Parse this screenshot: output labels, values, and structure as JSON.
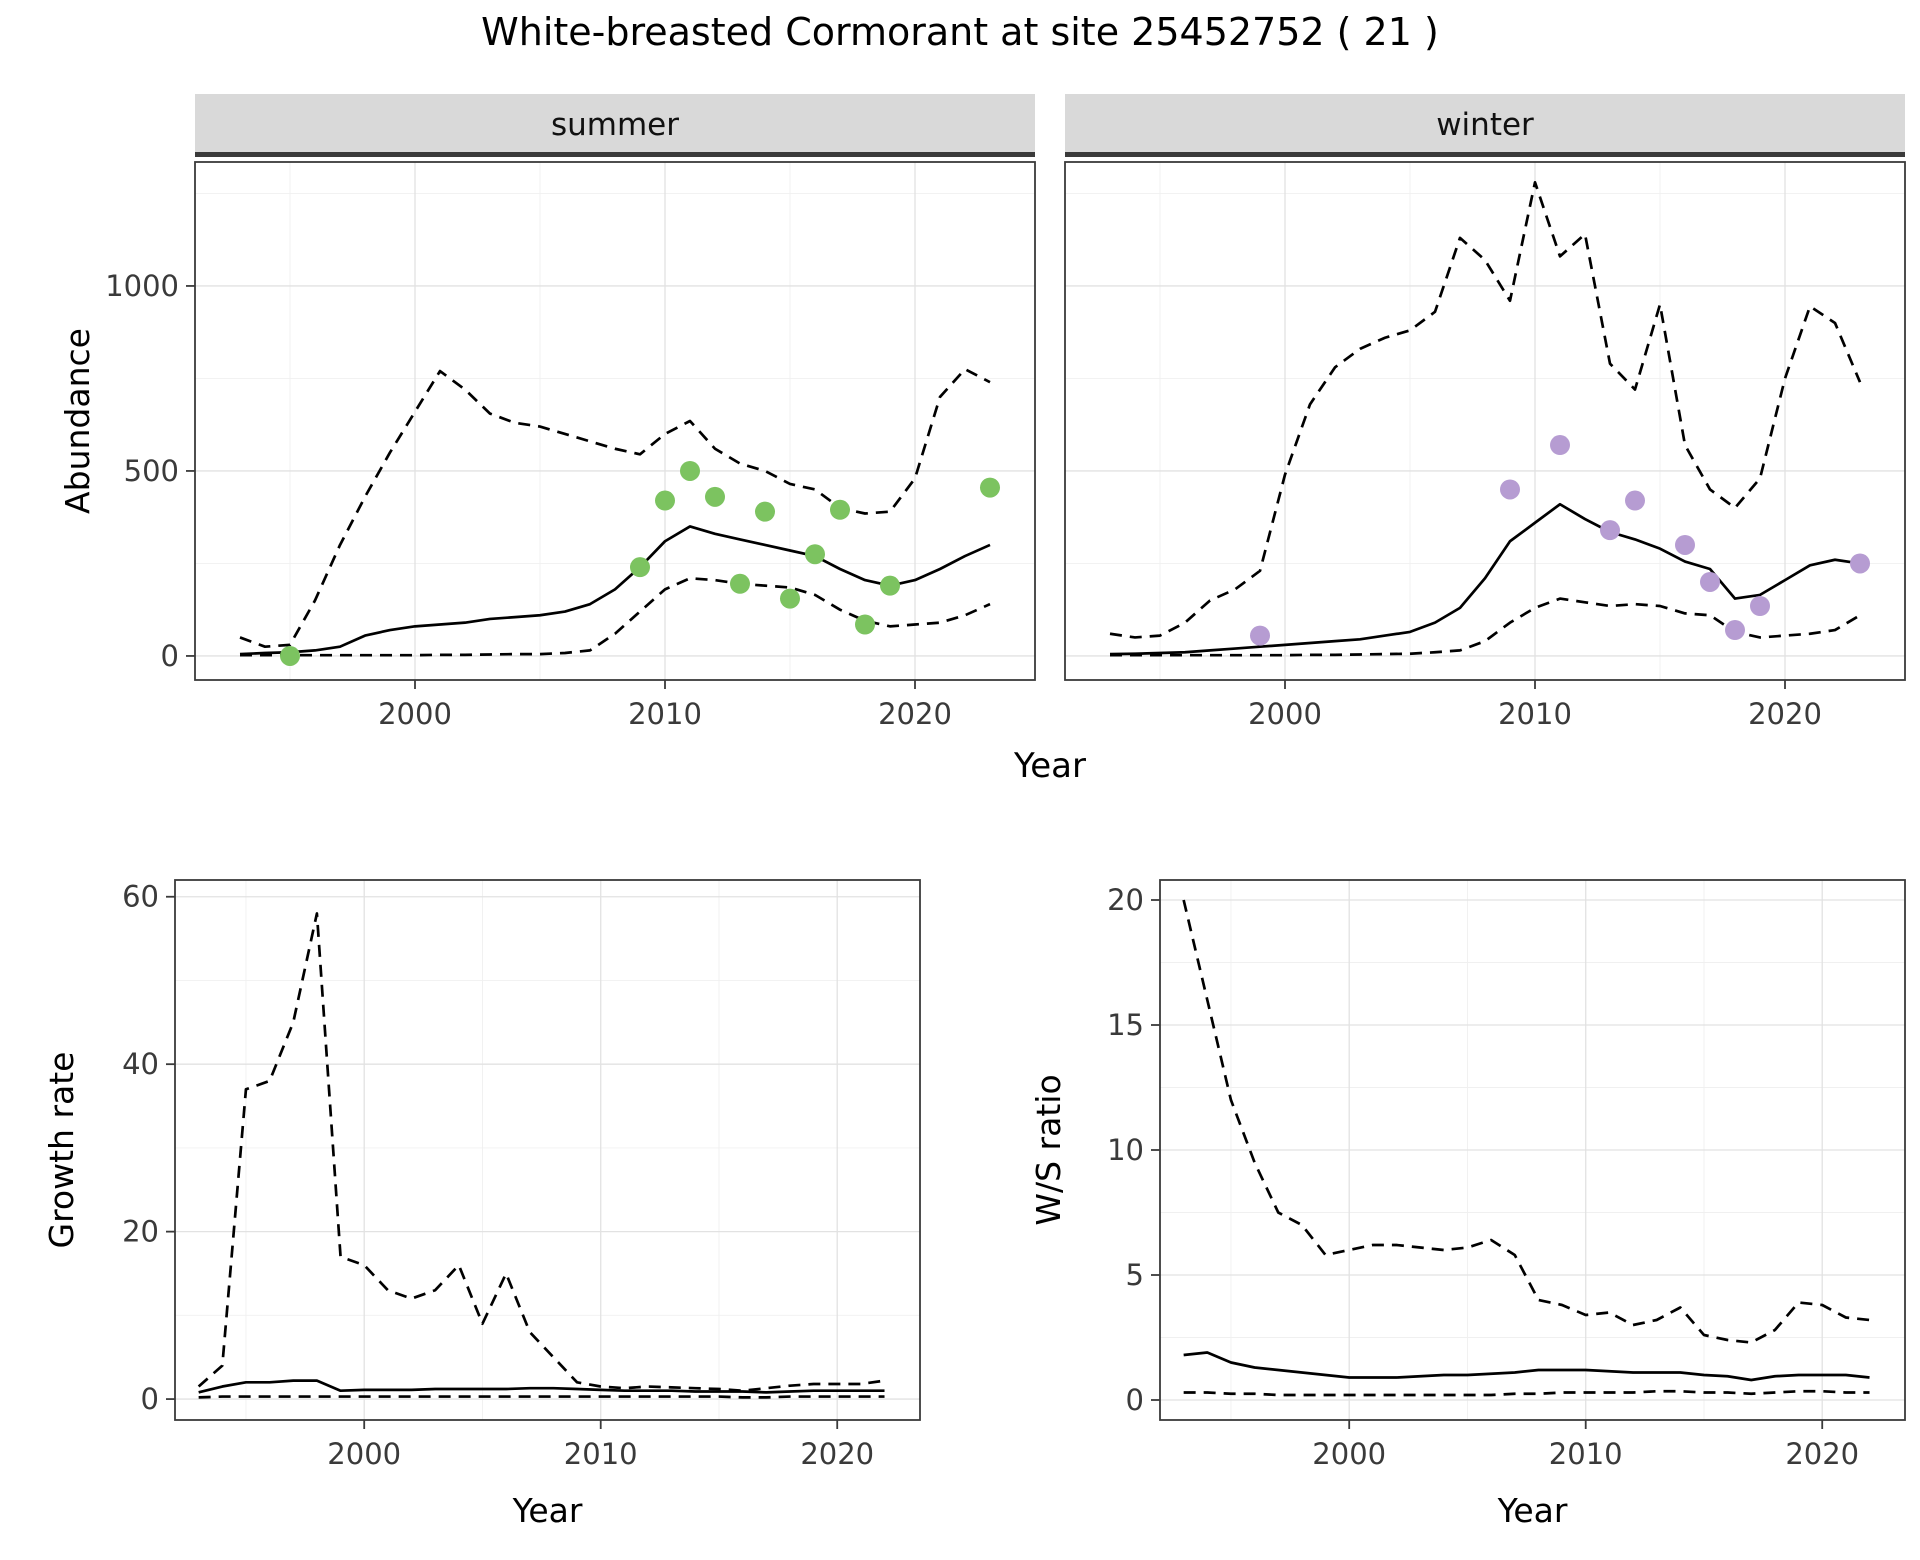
{
  "title": "White-breasted Cormorant at site 25452752 ( 21 )",
  "axes": {
    "shared_x_label": "Year"
  },
  "colors": {
    "solid_line": "#000000",
    "ci_line": "#000000",
    "summer_points": "#7cc360",
    "winter_points": "#b69cd2",
    "strip_background": "#d9d9d9"
  },
  "chart_data": [
    {
      "type": "line",
      "facet": "summer",
      "xlabel": "Year",
      "ylabel": "Abundance",
      "xlim": [
        1991.2,
        2024.8
      ],
      "ylim": [
        -65,
        1335
      ],
      "xticks": [
        2000,
        2010,
        2020
      ],
      "yticks": [
        0,
        500,
        1000
      ],
      "years": [
        1993,
        1994,
        1995,
        1996,
        1997,
        1998,
        1999,
        2000,
        2001,
        2002,
        2003,
        2004,
        2005,
        2006,
        2007,
        2008,
        2009,
        2010,
        2011,
        2012,
        2013,
        2014,
        2015,
        2016,
        2017,
        2018,
        2019,
        2020,
        2021,
        2022,
        2023
      ],
      "series": [
        {
          "name": "estimate",
          "style": "solid",
          "values": [
            5,
            8,
            10,
            15,
            25,
            55,
            70,
            80,
            85,
            90,
            100,
            105,
            110,
            120,
            140,
            180,
            240,
            310,
            350,
            330,
            315,
            300,
            285,
            270,
            235,
            205,
            190,
            205,
            235,
            270,
            300
          ]
        },
        {
          "name": "upper-ci",
          "style": "dashed",
          "values": [
            50,
            25,
            30,
            150,
            300,
            430,
            550,
            660,
            770,
            720,
            655,
            630,
            620,
            600,
            580,
            560,
            545,
            600,
            635,
            560,
            520,
            500,
            465,
            450,
            400,
            385,
            390,
            480,
            700,
            775,
            740
          ]
        },
        {
          "name": "lower-ci",
          "style": "dashed",
          "values": [
            2,
            2,
            2,
            2,
            2,
            2,
            2,
            2,
            3,
            3,
            4,
            5,
            5,
            8,
            15,
            60,
            120,
            180,
            210,
            205,
            195,
            190,
            185,
            165,
            125,
            95,
            80,
            85,
            90,
            110,
            140
          ]
        }
      ],
      "points": {
        "name": "observed-counts",
        "color": "#7cc360",
        "years": [
          1995,
          2009,
          2010,
          2011,
          2012,
          2013,
          2014,
          2015,
          2016,
          2017,
          2018,
          2019,
          2023
        ],
        "values": [
          0,
          240,
          420,
          500,
          430,
          195,
          390,
          155,
          275,
          395,
          85,
          190,
          455
        ]
      }
    },
    {
      "type": "line",
      "facet": "winter",
      "xlabel": "Year",
      "ylabel": "Abundance",
      "xlim": [
        1991.2,
        2024.8
      ],
      "ylim": [
        -65,
        1335
      ],
      "xticks": [
        2000,
        2010,
        2020
      ],
      "yticks": [
        0,
        500,
        1000
      ],
      "years": [
        1993,
        1994,
        1995,
        1996,
        1997,
        1998,
        1999,
        2000,
        2001,
        2002,
        2003,
        2004,
        2005,
        2006,
        2007,
        2008,
        2009,
        2010,
        2011,
        2012,
        2013,
        2014,
        2015,
        2016,
        2017,
        2018,
        2019,
        2020,
        2021,
        2022,
        2023
      ],
      "series": [
        {
          "name": "estimate",
          "style": "solid",
          "values": [
            5,
            6,
            8,
            10,
            15,
            20,
            25,
            30,
            35,
            40,
            45,
            55,
            65,
            90,
            130,
            210,
            310,
            360,
            410,
            370,
            335,
            315,
            290,
            255,
            235,
            155,
            165,
            205,
            245,
            260,
            250
          ]
        },
        {
          "name": "upper-ci",
          "style": "dashed",
          "values": [
            60,
            50,
            55,
            90,
            150,
            180,
            230,
            490,
            680,
            780,
            830,
            860,
            880,
            930,
            1130,
            1070,
            960,
            1280,
            1080,
            1140,
            790,
            720,
            950,
            570,
            450,
            400,
            480,
            750,
            945,
            900,
            740
          ]
        },
        {
          "name": "lower-ci",
          "style": "dashed",
          "values": [
            2,
            2,
            2,
            2,
            2,
            2,
            2,
            2,
            3,
            3,
            4,
            5,
            6,
            10,
            15,
            40,
            90,
            130,
            155,
            145,
            135,
            140,
            135,
            115,
            110,
            65,
            50,
            55,
            60,
            70,
            110
          ]
        }
      ],
      "points": {
        "name": "observed-counts",
        "color": "#b69cd2",
        "years": [
          1999,
          2009,
          2011,
          2013,
          2014,
          2016,
          2017,
          2018,
          2019,
          2023
        ],
        "values": [
          55,
          450,
          570,
          340,
          420,
          300,
          200,
          70,
          135,
          250
        ]
      }
    },
    {
      "type": "line",
      "facet": null,
      "xlabel": "Year",
      "ylabel": "Growth rate",
      "xlim": [
        1992,
        2023.5
      ],
      "ylim": [
        -2.5,
        62
      ],
      "xticks": [
        2000,
        2010,
        2020
      ],
      "yticks": [
        0,
        20,
        40,
        60
      ],
      "years": [
        1993,
        1994,
        1995,
        1996,
        1997,
        1998,
        1999,
        2000,
        2001,
        2002,
        2003,
        2004,
        2005,
        2006,
        2007,
        2008,
        2009,
        2010,
        2011,
        2012,
        2013,
        2014,
        2015,
        2016,
        2017,
        2018,
        2019,
        2020,
        2021,
        2022
      ],
      "series": [
        {
          "name": "estimate",
          "style": "solid",
          "values": [
            0.8,
            1.5,
            2.0,
            2.0,
            2.2,
            2.2,
            1.0,
            1.1,
            1.1,
            1.1,
            1.2,
            1.2,
            1.2,
            1.2,
            1.3,
            1.3,
            1.2,
            1.1,
            1.0,
            1.0,
            1.0,
            0.9,
            0.9,
            0.9,
            0.8,
            0.9,
            1.0,
            1.0,
            1.0,
            1.0
          ]
        },
        {
          "name": "upper-ci",
          "style": "dashed",
          "values": [
            1.5,
            4,
            37,
            38,
            45,
            58,
            17,
            16,
            13,
            12,
            13,
            16,
            9,
            15,
            8,
            5,
            2,
            1.5,
            1.3,
            1.5,
            1.4,
            1.3,
            1.2,
            1.0,
            1.3,
            1.6,
            1.8,
            1.8,
            1.8,
            2.2
          ]
        },
        {
          "name": "lower-ci",
          "style": "dashed",
          "values": [
            0.2,
            0.3,
            0.3,
            0.3,
            0.3,
            0.3,
            0.3,
            0.3,
            0.3,
            0.3,
            0.3,
            0.3,
            0.3,
            0.3,
            0.3,
            0.3,
            0.3,
            0.3,
            0.3,
            0.3,
            0.3,
            0.3,
            0.3,
            0.2,
            0.2,
            0.3,
            0.3,
            0.3,
            0.3,
            0.3
          ]
        }
      ],
      "points": null
    },
    {
      "type": "line",
      "facet": null,
      "xlabel": "Year",
      "ylabel": "W/S ratio",
      "xlim": [
        1992,
        2023.5
      ],
      "ylim": [
        -0.8,
        20.8
      ],
      "xticks": [
        2000,
        2010,
        2020
      ],
      "yticks": [
        0,
        5,
        10,
        15,
        20
      ],
      "years": [
        1993,
        1994,
        1995,
        1996,
        1997,
        1998,
        1999,
        2000,
        2001,
        2002,
        2003,
        2004,
        2005,
        2006,
        2007,
        2008,
        2009,
        2010,
        2011,
        2012,
        2013,
        2014,
        2015,
        2016,
        2017,
        2018,
        2019,
        2020,
        2021,
        2022
      ],
      "series": [
        {
          "name": "estimate",
          "style": "solid",
          "values": [
            1.8,
            1.9,
            1.5,
            1.3,
            1.2,
            1.1,
            1.0,
            0.9,
            0.9,
            0.9,
            0.95,
            1.0,
            1.0,
            1.05,
            1.1,
            1.2,
            1.2,
            1.2,
            1.15,
            1.1,
            1.1,
            1.1,
            1.0,
            0.95,
            0.8,
            0.95,
            1.0,
            1.0,
            1.0,
            0.9
          ]
        },
        {
          "name": "upper-ci",
          "style": "dashed",
          "values": [
            20,
            16,
            12,
            9.5,
            7.5,
            7.0,
            5.8,
            6.0,
            6.2,
            6.2,
            6.1,
            6.0,
            6.1,
            6.4,
            5.8,
            4.0,
            3.8,
            3.4,
            3.5,
            3.0,
            3.2,
            3.7,
            2.6,
            2.4,
            2.3,
            2.8,
            3.9,
            3.8,
            3.3,
            3.2
          ]
        },
        {
          "name": "lower-ci",
          "style": "dashed",
          "values": [
            0.3,
            0.3,
            0.25,
            0.25,
            0.2,
            0.2,
            0.2,
            0.2,
            0.2,
            0.2,
            0.2,
            0.2,
            0.2,
            0.2,
            0.25,
            0.25,
            0.3,
            0.3,
            0.3,
            0.3,
            0.35,
            0.35,
            0.3,
            0.3,
            0.25,
            0.3,
            0.35,
            0.35,
            0.3,
            0.3
          ]
        }
      ],
      "points": null
    }
  ]
}
